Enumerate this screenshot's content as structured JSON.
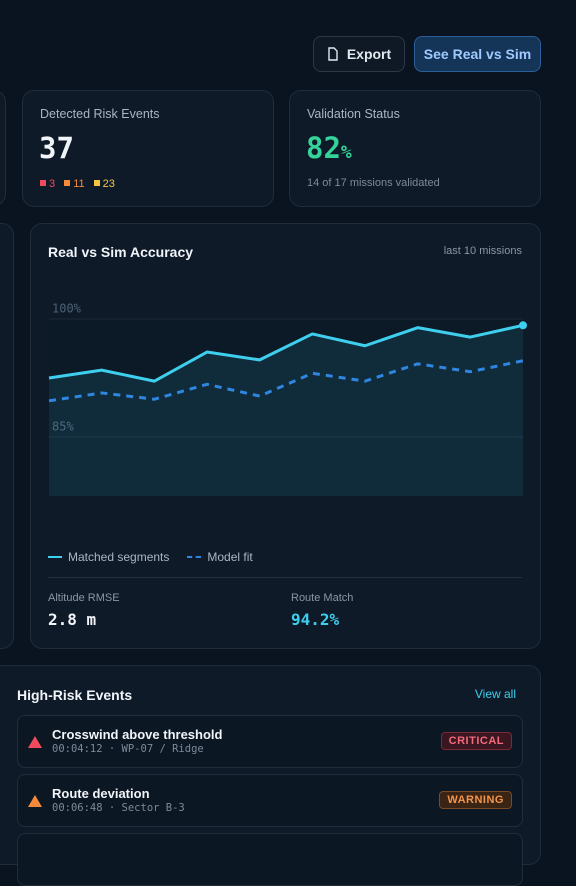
{
  "header": {
    "export_button": "Export",
    "compare_button": "See Real vs Sim"
  },
  "risk_card": {
    "label": "Detected Risk Events",
    "value": "37",
    "counts": [
      "3",
      "11",
      "23"
    ]
  },
  "validation_card": {
    "label": "Validation Status",
    "value": "82",
    "unit": "%",
    "note": "14 of 17 missions validated"
  },
  "accuracy_card": {
    "title": "Real vs Sim Accuracy",
    "subtitle": "last 10 missions",
    "chart_data": {
      "type": "line",
      "categories": [
        null,
        null,
        null,
        null,
        null,
        null,
        null,
        null,
        null,
        null
      ],
      "series": [
        {
          "name": "Matched segments",
          "color": "#3fcfee",
          "style": "solid",
          "values": [
            92.5,
            93.5,
            92.1,
            95.8,
            94.8,
            98.1,
            96.6,
            98.9,
            97.7,
            99.2
          ]
        },
        {
          "name": "Model fit",
          "color": "#2f86e0",
          "style": "dashed",
          "values": [
            89.6,
            90.6,
            89.8,
            91.7,
            90.2,
            93.1,
            92.1,
            94.3,
            93.3,
            94.7
          ]
        }
      ],
      "ylim": [
        77.5,
        100
      ],
      "yticks": [
        {
          "value": 100,
          "label": "100%"
        },
        {
          "value": 85,
          "label": "85%"
        }
      ],
      "grid": true
    },
    "stats": [
      {
        "label": "Altitude RMSE",
        "value": "2.8 m"
      },
      {
        "label": "Route Match",
        "value": "94.2%"
      }
    ]
  },
  "events": {
    "title": "High-Risk Events",
    "view_all": "View all",
    "items": [
      {
        "title": "Crosswind above threshold",
        "detail": "00:04:12 · WP-07 / Ridge",
        "severity": "CRITICAL"
      },
      {
        "title": "Route deviation",
        "detail": "00:06:48 · Sector B-3",
        "severity": "WARNING"
      }
    ]
  }
}
